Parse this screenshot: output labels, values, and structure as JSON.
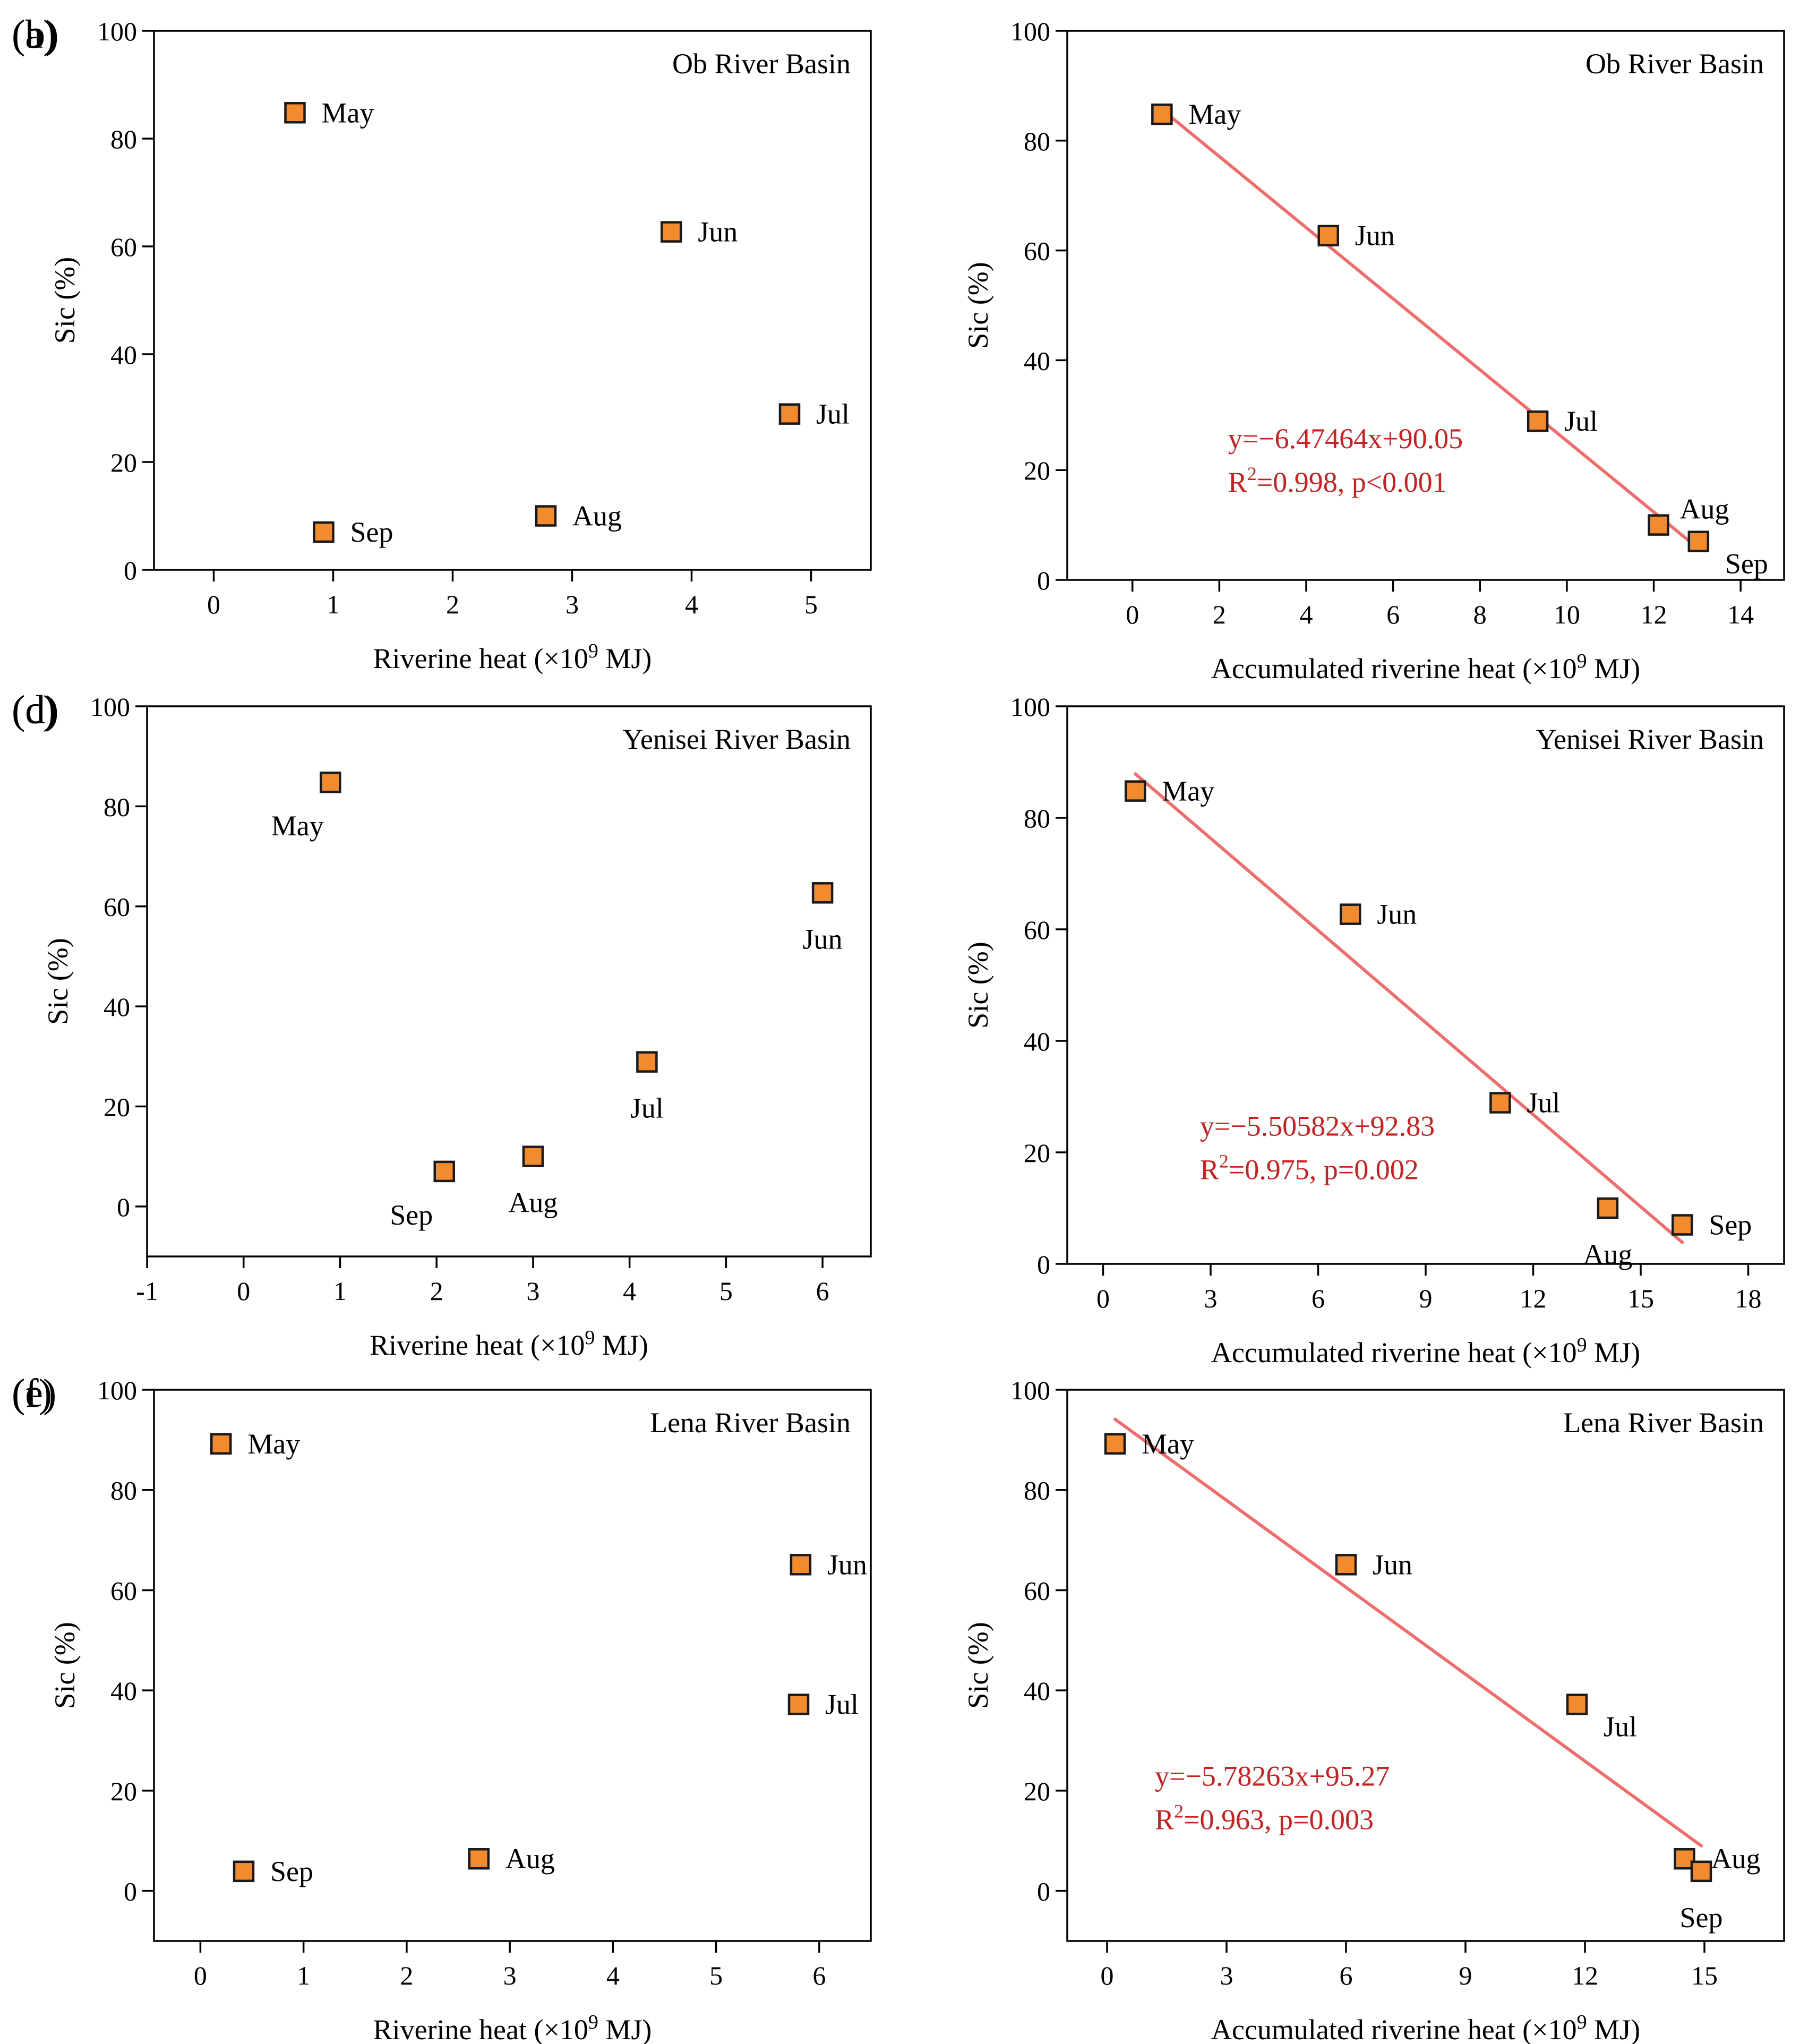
{
  "figure": {
    "colors": {
      "marker_fill": "#f28a2e",
      "marker_edge": "#1a1a1a",
      "fit_line": "#f06d6d",
      "annotation": "#cc1f1f",
      "axis": "#000000"
    }
  },
  "chart_data": [
    {
      "panel_label": "(a)",
      "type": "scatter",
      "title": "Ob River Basin",
      "xlabel": "Riverine heat (×10",
      "xlabel_sup": "9",
      "xlabel_tail": " MJ)",
      "ylabel": "Sic (%)",
      "xlim": [
        -0.5,
        5.5
      ],
      "ylim": [
        0,
        100
      ],
      "xticks": [
        0,
        1,
        2,
        3,
        4,
        5
      ],
      "xtick_labels": [
        "0",
        "1",
        "2",
        "3",
        "4",
        "5"
      ],
      "yticks": [
        0,
        20,
        40,
        60,
        80,
        100
      ],
      "ytick_labels": [
        "0",
        "20",
        "40",
        "60",
        "80",
        "100"
      ],
      "points": [
        {
          "label": "May",
          "x": 0.68,
          "y": 84.8,
          "pos": "right"
        },
        {
          "label": "Jun",
          "x": 3.83,
          "y": 62.7,
          "pos": "right"
        },
        {
          "label": "Jul",
          "x": 4.82,
          "y": 28.9,
          "pos": "right"
        },
        {
          "label": "Aug",
          "x": 2.78,
          "y": 10.0,
          "pos": "right"
        },
        {
          "label": "Sep",
          "x": 0.92,
          "y": 7.0,
          "pos": "right"
        }
      ]
    },
    {
      "panel_label": "(b)",
      "type": "scatter",
      "title": "Ob River Basin",
      "xlabel": "Accumulated riverine heat (×10",
      "xlabel_sup": "9",
      "xlabel_tail": " MJ)",
      "ylabel": "Sic (%)",
      "xlim": [
        -1.5,
        15
      ],
      "ylim": [
        0,
        100
      ],
      "xticks": [
        0,
        2,
        4,
        6,
        8,
        10,
        12,
        14
      ],
      "xtick_labels": [
        "0",
        "2",
        "4",
        "6",
        "8",
        "10",
        "12",
        "14"
      ],
      "yticks": [
        0,
        20,
        40,
        60,
        80,
        100
      ],
      "ytick_labels": [
        "0",
        "20",
        "40",
        "60",
        "80",
        "100"
      ],
      "points": [
        {
          "label": "May",
          "x": 0.68,
          "y": 84.8,
          "pos": "right"
        },
        {
          "label": "Jun",
          "x": 4.51,
          "y": 62.7,
          "pos": "right"
        },
        {
          "label": "Jul",
          "x": 9.33,
          "y": 28.9,
          "pos": "right"
        },
        {
          "label": "Aug",
          "x": 12.11,
          "y": 10.0,
          "pos": "upright"
        },
        {
          "label": "Sep",
          "x": 13.03,
          "y": 7.0,
          "pos": "downright"
        }
      ],
      "fit": {
        "slope": -6.47464,
        "intercept": 90.05,
        "x0": 0.68,
        "x1": 13.03
      },
      "equation": "y=−6.47464x+90.05",
      "r2_prefix": "R",
      "r2_sup": "2",
      "r2_text": "=0.998, p<0.001",
      "annot": {
        "x": 2.2,
        "y": 24
      }
    },
    {
      "panel_label": "(c)",
      "type": "scatter",
      "title": "Yenisei River Basin",
      "xlabel": "Riverine heat (×10",
      "xlabel_sup": "9",
      "xlabel_tail": " MJ)",
      "ylabel": "Sic (%)",
      "xlim": [
        -1,
        6.5
      ],
      "ylim": [
        -10,
        100
      ],
      "xticks": [
        -1,
        0,
        1,
        2,
        3,
        4,
        5,
        6
      ],
      "xtick_labels": [
        "-1",
        "0",
        "1",
        "2",
        "3",
        "4",
        "5",
        "6"
      ],
      "yticks": [
        0,
        20,
        40,
        60,
        80,
        100
      ],
      "ytick_labels": [
        "0",
        "20",
        "40",
        "60",
        "80",
        "100"
      ],
      "points": [
        {
          "label": "May",
          "x": 0.9,
          "y": 84.8,
          "pos": "belowleft"
        },
        {
          "label": "Jun",
          "x": 6.0,
          "y": 62.7,
          "pos": "below"
        },
        {
          "label": "Jul",
          "x": 4.18,
          "y": 28.9,
          "pos": "below"
        },
        {
          "label": "Aug",
          "x": 3.0,
          "y": 10.0,
          "pos": "below"
        },
        {
          "label": "Sep",
          "x": 2.08,
          "y": 7.0,
          "pos": "belowleft"
        }
      ]
    },
    {
      "panel_label": "(d)",
      "type": "scatter",
      "title": "Yenisei River Basin",
      "xlabel": "Accumulated riverine heat (×10",
      "xlabel_sup": "9",
      "xlabel_tail": " MJ)",
      "ylabel": "Sic (%)",
      "xlim": [
        -1,
        19
      ],
      "ylim": [
        0,
        100
      ],
      "xticks": [
        0,
        3,
        6,
        9,
        12,
        15,
        18
      ],
      "xtick_labels": [
        "0",
        "3",
        "6",
        "9",
        "12",
        "15",
        "18"
      ],
      "yticks": [
        0,
        20,
        40,
        60,
        80,
        100
      ],
      "ytick_labels": [
        "0",
        "20",
        "40",
        "60",
        "80",
        "100"
      ],
      "points": [
        {
          "label": "May",
          "x": 0.9,
          "y": 84.8,
          "pos": "right"
        },
        {
          "label": "Jun",
          "x": 6.9,
          "y": 62.7,
          "pos": "right"
        },
        {
          "label": "Jul",
          "x": 11.08,
          "y": 28.9,
          "pos": "right"
        },
        {
          "label": "Aug",
          "x": 14.08,
          "y": 10.0,
          "pos": "below"
        },
        {
          "label": "Sep",
          "x": 16.16,
          "y": 7.0,
          "pos": "right"
        }
      ],
      "fit": {
        "slope": -5.50582,
        "intercept": 92.83,
        "x0": 0.9,
        "x1": 16.16
      },
      "equation": "y=−5.50582x+92.83",
      "r2_prefix": "R",
      "r2_sup": "2",
      "r2_text": "=0.975, p=0.002",
      "annot": {
        "x": 2.7,
        "y": 23
      }
    },
    {
      "panel_label": "(e)",
      "type": "scatter",
      "title": "Lena River Basin",
      "xlabel": "Riverine heat (×10",
      "xlabel_sup": "9",
      "xlabel_tail": " MJ)",
      "ylabel": "Sic (%)",
      "xlim": [
        -0.45,
        6.5
      ],
      "ylim": [
        -10,
        100
      ],
      "xticks": [
        0,
        1,
        2,
        3,
        4,
        5,
        6
      ],
      "xtick_labels": [
        "0",
        "1",
        "2",
        "3",
        "4",
        "5",
        "6"
      ],
      "yticks": [
        0,
        20,
        40,
        60,
        80,
        100
      ],
      "ytick_labels": [
        "0",
        "20",
        "40",
        "60",
        "80",
        "100"
      ],
      "points": [
        {
          "label": "May",
          "x": 0.2,
          "y": 89.2,
          "pos": "right"
        },
        {
          "label": "Jun",
          "x": 5.82,
          "y": 65.1,
          "pos": "right"
        },
        {
          "label": "Jul",
          "x": 5.8,
          "y": 37.2,
          "pos": "right"
        },
        {
          "label": "Aug",
          "x": 2.7,
          "y": 6.4,
          "pos": "right"
        },
        {
          "label": "Sep",
          "x": 0.42,
          "y": 3.9,
          "pos": "right"
        }
      ]
    },
    {
      "panel_label": "(f)",
      "type": "scatter",
      "title": "Lena River Basin",
      "xlabel": "Accumulated riverine heat (×10",
      "xlabel_sup": "9",
      "xlabel_tail": " MJ)",
      "ylabel": "Sic (%)",
      "xlim": [
        -1,
        17
      ],
      "ylim": [
        -10,
        100
      ],
      "xticks": [
        0,
        3,
        6,
        9,
        12,
        15
      ],
      "xtick_labels": [
        "0",
        "3",
        "6",
        "9",
        "12",
        "15"
      ],
      "yticks": [
        0,
        20,
        40,
        60,
        80,
        100
      ],
      "ytick_labels": [
        "0",
        "20",
        "40",
        "60",
        "80",
        "100"
      ],
      "points": [
        {
          "label": "May",
          "x": 0.2,
          "y": 89.2,
          "pos": "right"
        },
        {
          "label": "Jun",
          "x": 6.0,
          "y": 65.1,
          "pos": "right"
        },
        {
          "label": "Jul",
          "x": 11.8,
          "y": 37.2,
          "pos": "downright"
        },
        {
          "label": "Aug",
          "x": 14.5,
          "y": 6.4,
          "pos": "right"
        },
        {
          "label": "Sep",
          "x": 14.92,
          "y": 3.9,
          "pos": "below"
        }
      ],
      "fit": {
        "slope": -5.78263,
        "intercept": 95.27,
        "x0": 0.2,
        "x1": 14.92
      },
      "equation": "y=−5.78263x+95.27",
      "r2_prefix": "R",
      "r2_sup": "2",
      "r2_text": "=0.963, p=0.003",
      "annot": {
        "x": 1.2,
        "y": 21
      }
    }
  ]
}
